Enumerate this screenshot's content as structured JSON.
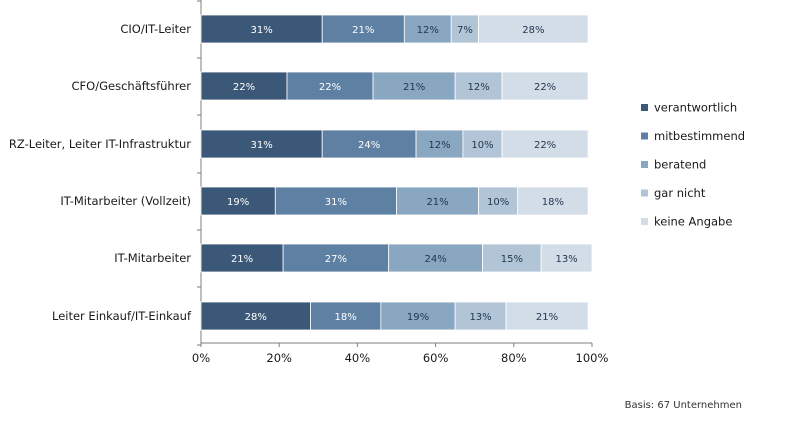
{
  "chart_data": {
    "type": "bar",
    "orientation": "horizontal",
    "stacked": true,
    "categories": [
      "CIO/IT-Leiter",
      "CFO/Geschäftsführer",
      "RZ-Leiter, Leiter IT-Infrastruktur",
      "IT-Mitarbeiter (Vollzeit)",
      "IT-Mitarbeiter",
      "Leiter Einkauf/IT-Einkauf"
    ],
    "series": [
      {
        "name": "verantwortlich",
        "color": "#3b5878",
        "values": [
          31,
          22,
          31,
          19,
          21,
          28
        ]
      },
      {
        "name": "mitbestimmend",
        "color": "#5e80a3",
        "values": [
          21,
          22,
          24,
          31,
          27,
          18
        ]
      },
      {
        "name": "beratend",
        "color": "#8aa7c2",
        "values": [
          12,
          21,
          12,
          21,
          24,
          19
        ]
      },
      {
        "name": "gar nicht",
        "color": "#b2c5d6",
        "values": [
          7,
          12,
          10,
          10,
          15,
          13
        ]
      },
      {
        "name": "keine Angabe",
        "color": "#d3dde7",
        "values": [
          28,
          22,
          22,
          18,
          13,
          21
        ]
      }
    ],
    "xlim": [
      0,
      100
    ],
    "x_ticks": [
      "0%",
      "20%",
      "40%",
      "60%",
      "80%",
      "100%"
    ],
    "value_suffix": "%",
    "legend_position": "right",
    "grid": false,
    "title": "",
    "xlabel": "",
    "ylabel": ""
  },
  "footnote": "Basis: 67 Unternehmen"
}
